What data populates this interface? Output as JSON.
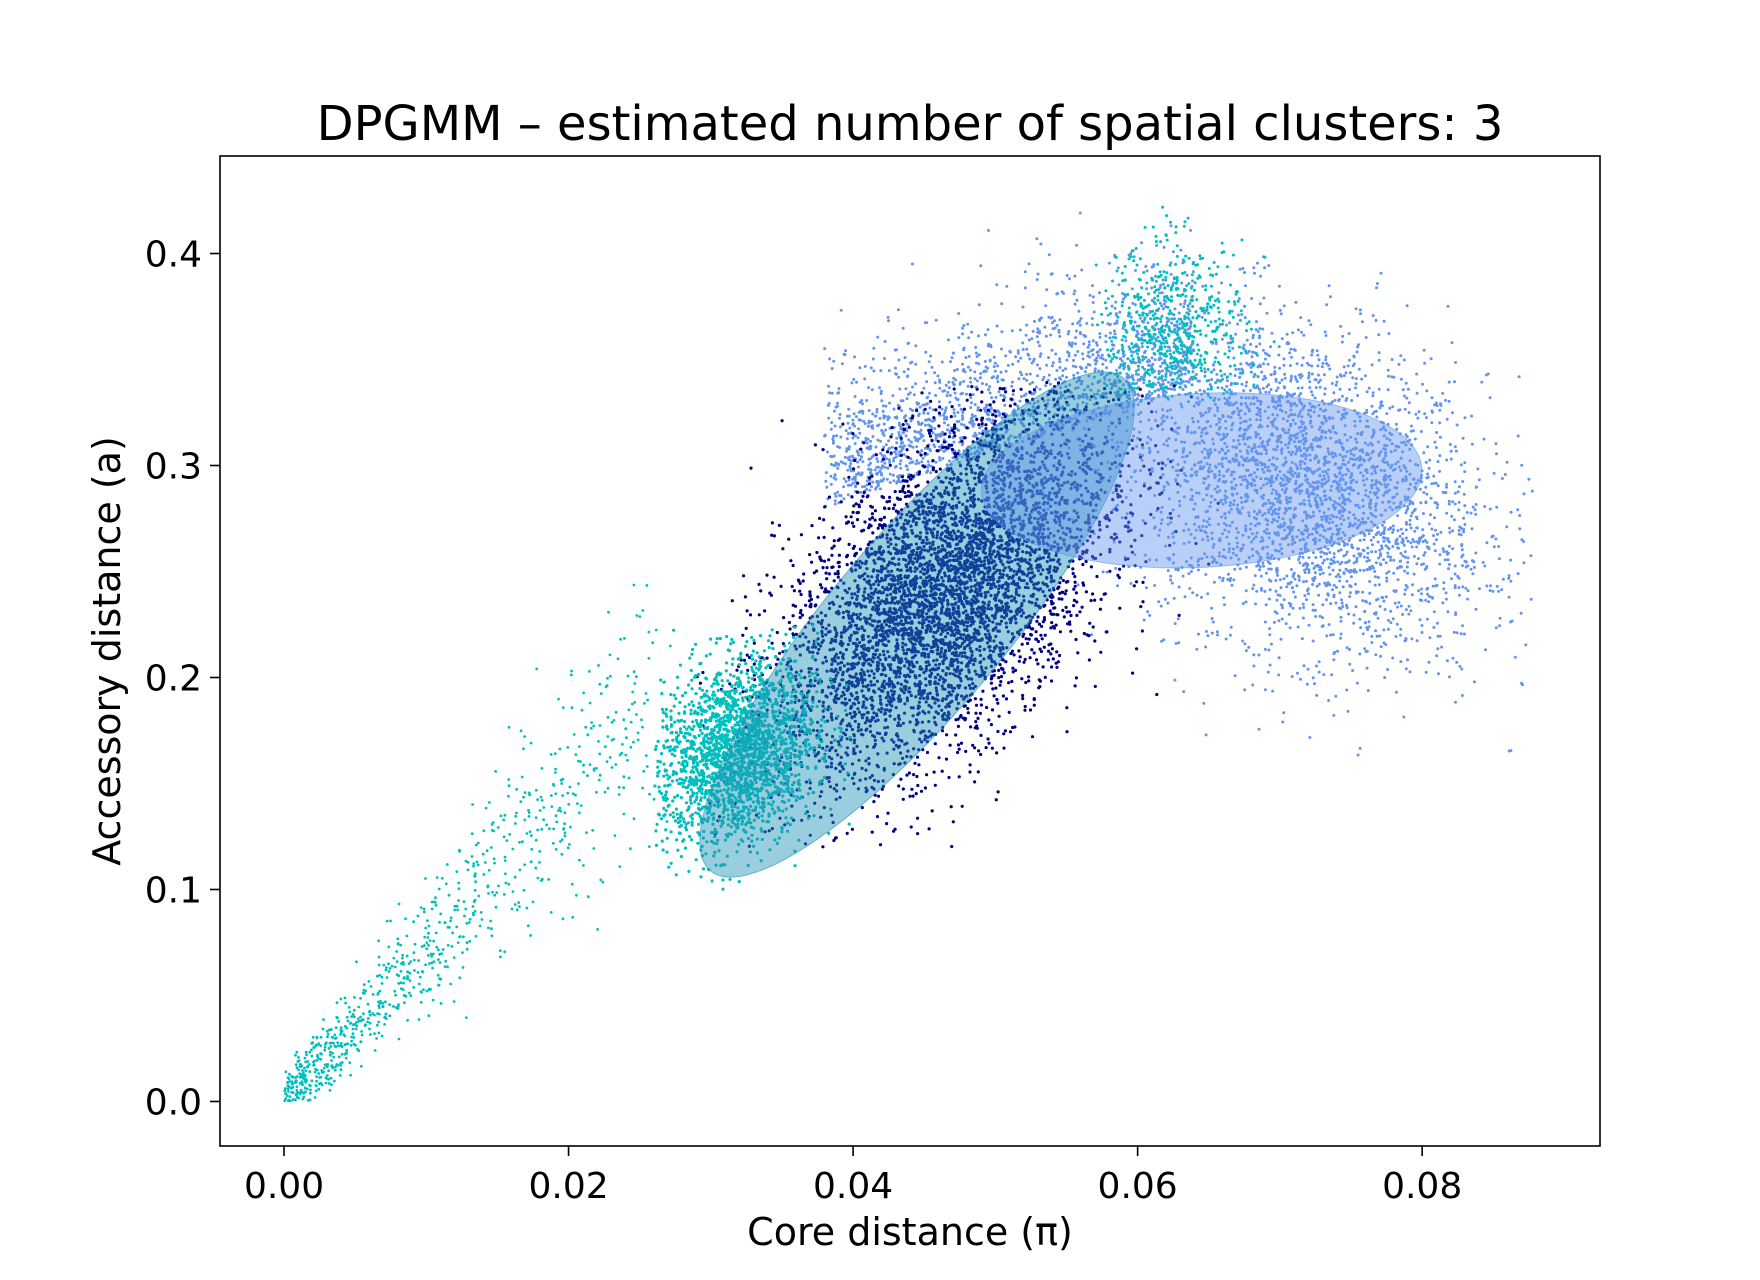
{
  "chart_data": {
    "type": "scatter",
    "title": "DPGMM – estimated number of spatial clusters: 3",
    "xlabel": "Core distance (π)",
    "ylabel": "Accessory distance (a)",
    "xlim": [
      -0.0045,
      0.0925
    ],
    "ylim": [
      -0.021,
      0.446
    ],
    "xticks": [
      0.0,
      0.02,
      0.04,
      0.06,
      0.08
    ],
    "xtick_labels": [
      "0.00",
      "0.02",
      "0.04",
      "0.06",
      "0.08"
    ],
    "yticks": [
      0.0,
      0.1,
      0.2,
      0.3,
      0.4
    ],
    "ytick_labels": [
      "0.0",
      "0.1",
      "0.2",
      "0.3",
      "0.4"
    ],
    "grid": false,
    "legend": "none",
    "clusters": [
      {
        "color": "#000080",
        "point_mass": {
          "center": [
            0.0465,
            0.24
          ],
          "spread": [
            0.0058,
            0.043
          ],
          "correlation": 0.55,
          "x_range": [
            0.029,
            0.066
          ],
          "y_range": [
            0.12,
            0.34
          ]
        },
        "ellipse": {
          "center": [
            0.0445,
            0.225
          ],
          "semi_axis_along_x": 0.021,
          "semi_axis_along_y": 0.075,
          "color": "#1e90b4",
          "opacity": 0.45
        }
      },
      {
        "color": "#6495ED",
        "point_mass": {
          "center": [
            0.0715,
            0.29
          ],
          "spread": [
            0.0065,
            0.04
          ],
          "correlation": -0.3,
          "x_range": [
            0.047,
            0.088
          ],
          "y_range": [
            0.15,
            0.42
          ]
        },
        "upper_band": {
          "x_range": [
            0.038,
            0.064
          ],
          "y_range": [
            0.28,
            0.42
          ]
        },
        "ellipse": {
          "center": [
            0.0645,
            0.293
          ],
          "semi_axis_along_x": 0.0155,
          "semi_axis_along_y": 0.041,
          "color": "#6495ED",
          "opacity": 0.45
        }
      },
      {
        "color": "#00BFBF",
        "point_mass": {
          "center": [
            0.0318,
            0.165
          ],
          "spread": [
            0.0028,
            0.022
          ],
          "correlation": 0.2,
          "x_range": [
            0.026,
            0.04
          ],
          "y_range": [
            0.1,
            0.23
          ]
        },
        "upper_lobe": {
          "center": [
            0.0625,
            0.36
          ],
          "x_range": [
            0.057,
            0.07
          ],
          "y_range": [
            0.33,
            0.43
          ]
        },
        "diagonal_tail": {
          "x_range": [
            0.0,
            0.026
          ],
          "y_range": [
            0.0,
            0.2
          ]
        }
      }
    ]
  }
}
